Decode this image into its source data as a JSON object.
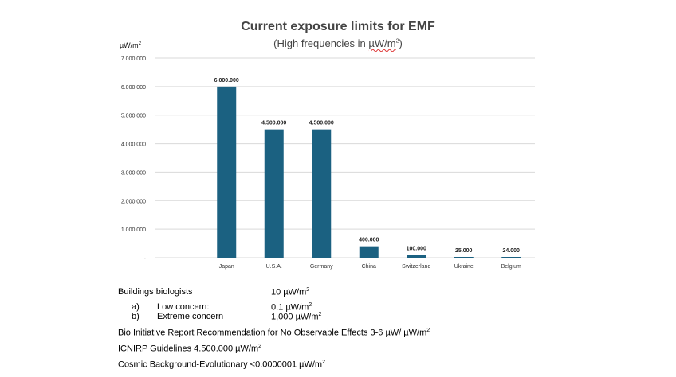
{
  "chart_data": {
    "type": "bar",
    "title": "Current exposure limits for EMF",
    "subtitle": {
      "text": "(High frequencies in ",
      "unit": "µW/m",
      "sup": "2",
      "close": ")"
    },
    "ylabel": {
      "base": "µW/m",
      "sup": "2"
    },
    "ylim": [
      0,
      7000000
    ],
    "yticks": [
      0,
      1000000,
      2000000,
      3000000,
      4000000,
      5000000,
      6000000,
      7000000
    ],
    "ytick_labels": [
      "-",
      "1.000.000",
      "2.000.000",
      "3.000.000",
      "4.000.000",
      "5.000.000",
      "6.000.000",
      "7.000.000"
    ],
    "categories": [
      "",
      "Japan",
      "U.S.A.",
      "Germany",
      "China",
      "Switzerland",
      "Ukraine",
      "Belgium"
    ],
    "values": [
      null,
      6000000,
      4500000,
      4500000,
      400000,
      100000,
      25000,
      24000
    ],
    "data_labels": [
      "",
      "6.000.000",
      "4.500.000",
      "4.500.000",
      "400.000",
      "100.000",
      "25.000",
      "24.000"
    ],
    "grid": true,
    "bar_color": "#1b6181"
  },
  "notes": {
    "building_biologists": {
      "label": "Buildings biologists",
      "value": "10 µW/m",
      "sup": "2"
    },
    "low": {
      "mark": "a)",
      "label": "Low concern:",
      "value": "0.1 µW/m",
      "sup": "2"
    },
    "extreme": {
      "mark": "b)",
      "label": "Extreme concern",
      "value": "1,000 µW/m",
      "sup": "2"
    },
    "bio": {
      "text": "Bio Initiative Report Recommendation for No Observable Effects 3-6 µW/ µW/m",
      "sup": "2"
    },
    "icnirp": {
      "text": "ICNIRP Guidelines 4.500.000 µW/m",
      "sup": "2"
    },
    "cosmic": {
      "text": "Cosmic Background-Evolutionary <0.0000001 µW/m",
      "sup": "2"
    }
  }
}
